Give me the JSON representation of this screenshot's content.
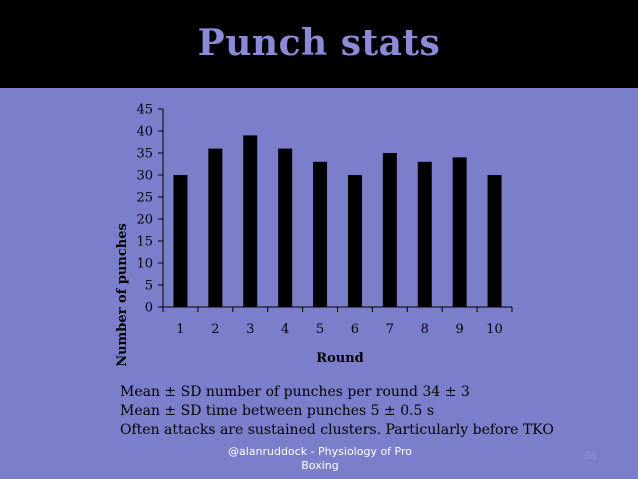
{
  "slide": {
    "title": "Punch stats",
    "notes": [
      "Mean ± SD number of punches per round 34 ± 3",
      "Mean ± SD time between punches 5 ± 0.5 s",
      "Often attacks are sustained clusters. Particularly before TKO"
    ],
    "footer_line1": "@alanruddock - Physiology of Pro",
    "footer_line2": "Boxing",
    "page_number": "36"
  },
  "colors": {
    "background": "#7b7fcb",
    "title": "#8a8ad6",
    "bar": "#000000"
  },
  "chart_data": {
    "type": "bar",
    "categories": [
      "1",
      "2",
      "3",
      "4",
      "5",
      "6",
      "7",
      "8",
      "9",
      "10"
    ],
    "values": [
      30,
      36,
      39,
      36,
      33,
      30,
      35,
      33,
      34,
      30
    ],
    "xlabel": "Round",
    "ylabel": "Number of punches",
    "ylim": [
      0,
      45
    ],
    "yticks": [
      0,
      5,
      10,
      15,
      20,
      25,
      30,
      35,
      40,
      45
    ],
    "grid": false,
    "legend": "none"
  }
}
